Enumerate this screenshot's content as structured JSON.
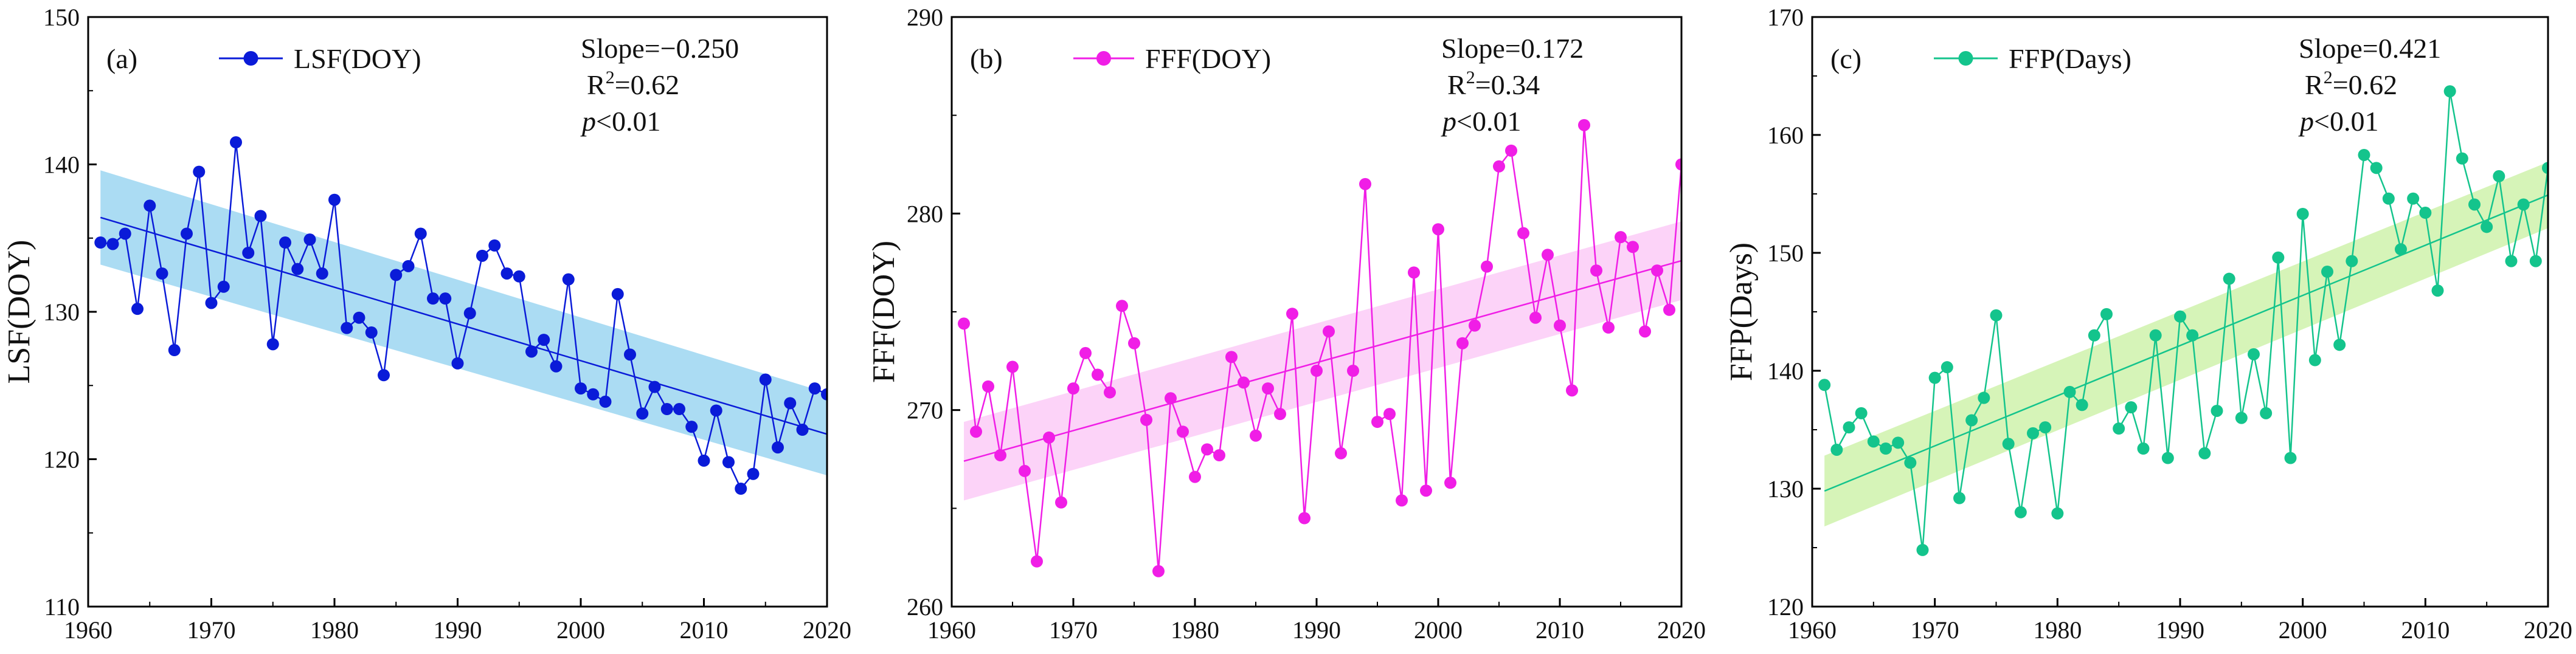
{
  "chart_data": [
    {
      "type": "scatter",
      "panel_label": "(a)",
      "ylabel": "LSF(DOY)",
      "xlim": [
        1960,
        2020
      ],
      "ylim": [
        110,
        150
      ],
      "xticks": [
        1960,
        1970,
        1980,
        1990,
        2000,
        2010,
        2020
      ],
      "yticks": [
        110,
        120,
        130,
        140,
        150
      ],
      "grid": false,
      "legend_position": "top-left",
      "series": [
        {
          "name": "LSF(DOY)",
          "color": "#0a1bd8",
          "band_color": "#8fd0ef",
          "x": [
            1961,
            1962,
            1963,
            1964,
            1965,
            1966,
            1967,
            1968,
            1969,
            1970,
            1971,
            1972,
            1973,
            1974,
            1975,
            1976,
            1977,
            1978,
            1979,
            1980,
            1981,
            1982,
            1983,
            1984,
            1985,
            1986,
            1987,
            1988,
            1989,
            1990,
            1991,
            1992,
            1993,
            1994,
            1995,
            1996,
            1997,
            1998,
            1999,
            2000,
            2001,
            2002,
            2003,
            2004,
            2005,
            2006,
            2007,
            2008,
            2009,
            2010,
            2011,
            2012,
            2013,
            2014,
            2015,
            2016,
            2017,
            2018,
            2019,
            2020
          ],
          "y": [
            134.7,
            134.6,
            135.3,
            130.2,
            137.2,
            132.6,
            127.4,
            135.3,
            139.5,
            130.6,
            131.7,
            141.5,
            134.0,
            136.5,
            127.8,
            134.7,
            132.9,
            134.9,
            132.6,
            137.6,
            128.9,
            129.6,
            128.6,
            125.7,
            132.5,
            133.1,
            135.3,
            130.9,
            130.9,
            126.5,
            129.9,
            133.8,
            134.5,
            132.6,
            132.4,
            127.3,
            128.1,
            126.3,
            132.2,
            124.8,
            124.4,
            123.9,
            131.2,
            127.1,
            123.1,
            124.9,
            123.4,
            123.4,
            122.2,
            119.9,
            123.3,
            119.8,
            118.0,
            119.0,
            125.4,
            120.8,
            123.8,
            122.0,
            124.8,
            124.4
          ]
        }
      ],
      "fit": {
        "x": [
          1961,
          2020
        ],
        "y": [
          136.4,
          121.7
        ],
        "band_y": [
          3.2,
          2.8
        ]
      },
      "annotation": {
        "slope_text": "Slope=−0.250",
        "r2_prefix": "R",
        "r2_sup": "2",
        "r2_value": "=0.62",
        "p_italic": "p",
        "p_value": "<0.01"
      }
    },
    {
      "type": "scatter",
      "panel_label": "(b)",
      "ylabel": "FFF(DOY)",
      "xlim": [
        1960,
        2020
      ],
      "ylim": [
        260,
        290
      ],
      "xticks": [
        1960,
        1970,
        1980,
        1990,
        2000,
        2010,
        2020
      ],
      "yticks": [
        260,
        270,
        280,
        290
      ],
      "grid": false,
      "legend_position": "top-left",
      "series": [
        {
          "name": "FFF(DOY)",
          "color": "#f01ee6",
          "band_color": "#fbc4f6",
          "x": [
            1961,
            1962,
            1963,
            1964,
            1965,
            1966,
            1967,
            1968,
            1969,
            1970,
            1971,
            1972,
            1973,
            1974,
            1975,
            1976,
            1977,
            1978,
            1979,
            1980,
            1981,
            1982,
            1983,
            1984,
            1985,
            1986,
            1987,
            1988,
            1989,
            1990,
            1991,
            1992,
            1993,
            1994,
            1995,
            1996,
            1997,
            1998,
            1999,
            2000,
            2001,
            2002,
            2003,
            2004,
            2005,
            2006,
            2007,
            2008,
            2009,
            2010,
            2011,
            2012,
            2013,
            2014,
            2015,
            2016,
            2017,
            2018,
            2019,
            2020
          ],
          "y": [
            274.4,
            268.9,
            271.2,
            267.7,
            272.2,
            266.9,
            262.3,
            268.6,
            265.3,
            271.1,
            272.9,
            271.8,
            270.9,
            275.3,
            273.4,
            269.5,
            261.8,
            270.6,
            268.9,
            266.6,
            268.0,
            267.7,
            272.7,
            271.4,
            268.7,
            271.1,
            269.8,
            274.9,
            264.5,
            272.0,
            274.0,
            267.8,
            272.0,
            281.5,
            269.4,
            269.8,
            265.4,
            277.0,
            265.9,
            279.2,
            266.3,
            273.4,
            274.3,
            277.3,
            282.4,
            283.2,
            279.0,
            274.7,
            277.9,
            274.3,
            271.0,
            284.5,
            277.1,
            274.2,
            278.8,
            278.3,
            274.0,
            277.1,
            275.1,
            282.5
          ]
        }
      ],
      "fit": {
        "x": [
          1961,
          2020
        ],
        "y": [
          267.4,
          277.6
        ],
        "band_y": [
          2.0,
          2.0
        ]
      },
      "annotation": {
        "slope_text": "Slope=0.172",
        "r2_prefix": "R",
        "r2_sup": "2",
        "r2_value": "=0.34",
        "p_italic": "p",
        "p_value": "<0.01"
      }
    },
    {
      "type": "scatter",
      "panel_label": "(c)",
      "ylabel": "FFP(Days)",
      "xlim": [
        1960,
        2020
      ],
      "ylim": [
        120,
        170
      ],
      "xticks": [
        1960,
        1970,
        1980,
        1990,
        2000,
        2010,
        2020
      ],
      "yticks": [
        120,
        130,
        140,
        150,
        160,
        170
      ],
      "grid": false,
      "legend_position": "top-left",
      "series": [
        {
          "name": "FFP(Days)",
          "color": "#14c48c",
          "band_color": "#c8f0a0",
          "x": [
            1961,
            1962,
            1963,
            1964,
            1965,
            1966,
            1967,
            1968,
            1969,
            1970,
            1971,
            1972,
            1973,
            1974,
            1975,
            1976,
            1977,
            1978,
            1979,
            1980,
            1981,
            1982,
            1983,
            1984,
            1985,
            1986,
            1987,
            1988,
            1989,
            1990,
            1991,
            1992,
            1993,
            1994,
            1995,
            1996,
            1997,
            1998,
            1999,
            2000,
            2001,
            2002,
            2003,
            2004,
            2005,
            2006,
            2007,
            2008,
            2009,
            2010,
            2011,
            2012,
            2013,
            2014,
            2015,
            2016,
            2017,
            2018,
            2019,
            2020
          ],
          "y": [
            138.8,
            133.3,
            135.2,
            136.4,
            134.0,
            133.4,
            133.9,
            132.2,
            124.8,
            139.4,
            140.3,
            129.2,
            135.8,
            137.7,
            144.7,
            133.8,
            128.0,
            134.7,
            135.2,
            127.9,
            138.2,
            137.1,
            143.0,
            144.8,
            135.1,
            136.9,
            133.4,
            143.0,
            132.6,
            144.6,
            143.0,
            133.0,
            136.6,
            147.8,
            136.0,
            141.4,
            136.4,
            149.6,
            132.6,
            153.3,
            140.9,
            148.4,
            142.2,
            149.3,
            158.3,
            157.2,
            154.6,
            150.3,
            154.6,
            153.4,
            146.8,
            163.7,
            158.0,
            154.1,
            152.2,
            156.5,
            149.3,
            154.1,
            149.3,
            157.2
          ]
        }
      ],
      "fit": {
        "x": [
          1961,
          2020
        ],
        "y": [
          129.8,
          154.9
        ],
        "band_y": [
          3.0,
          2.8
        ]
      },
      "annotation": {
        "slope_text": "Slope=0.421",
        "r2_prefix": "R",
        "r2_sup": "2",
        "r2_value": "=0.62",
        "p_italic": "p",
        "p_value": "<0.01"
      }
    }
  ]
}
